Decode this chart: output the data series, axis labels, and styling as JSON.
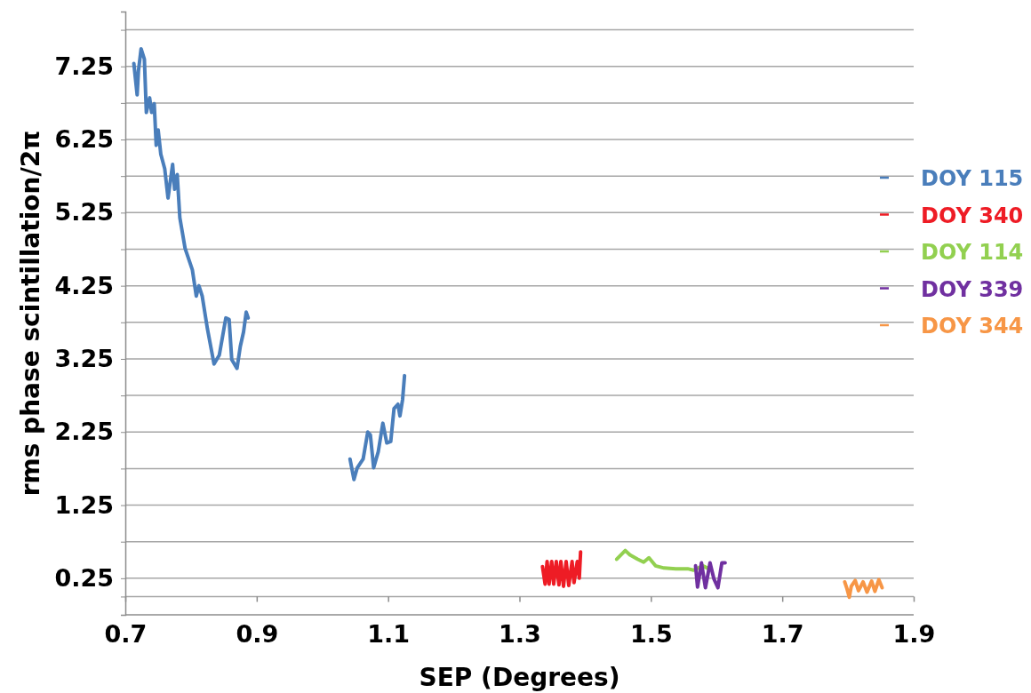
{
  "chart_data": {
    "type": "line",
    "xlabel": "SEP (Degrees)",
    "ylabel": "rms phase scintillation/2π",
    "xlim": [
      0.7,
      1.9
    ],
    "xticks": [
      0.7,
      0.9,
      1.1,
      1.3,
      1.5,
      1.7,
      1.9
    ],
    "ylim": [
      -0.25,
      8
    ],
    "yticks": [
      {
        "value": 0,
        "label": null
      },
      0.25,
      {
        "value": 0.75,
        "label": null
      },
      1.25,
      {
        "value": 1.75,
        "label": null
      },
      2.25,
      {
        "value": 2.75,
        "label": null
      },
      3.25,
      {
        "value": 3.75,
        "label": null
      },
      4.25,
      {
        "value": 4.75,
        "label": null
      },
      5.25,
      {
        "value": 5.75,
        "label": null
      },
      6.25,
      {
        "value": 6.75,
        "label": null
      },
      7.25,
      {
        "value": 7.75,
        "label": null
      }
    ],
    "grid": "y",
    "legend": "right",
    "marker": "none",
    "line_style": "solid",
    "series": [
      {
        "name": "DOY 115",
        "color": "#4a7ebb",
        "x": [
          0.713,
          0.718,
          0.72,
          0.724,
          0.729,
          0.732,
          0.737,
          0.74,
          0.744,
          0.747,
          0.75,
          0.754,
          0.76,
          0.765,
          0.772,
          0.775,
          0.779,
          0.783,
          0.791,
          0.802,
          0.808,
          0.812,
          0.817,
          0.825,
          0.835,
          0.843,
          0.853,
          0.858,
          0.862,
          0.87,
          0.875,
          0.88,
          0.884,
          0.887,
          0.96,
          1.042,
          1.048,
          1.053,
          1.062,
          1.069,
          1.073,
          1.078,
          1.085,
          1.092,
          1.098,
          1.104,
          1.109,
          1.115,
          1.118,
          1.122,
          1.125
        ],
        "values": [
          7.29,
          6.86,
          7.19,
          7.49,
          7.35,
          6.62,
          6.82,
          6.62,
          6.74,
          6.17,
          6.38,
          6.05,
          5.85,
          5.45,
          5.91,
          5.57,
          5.77,
          5.18,
          4.76,
          4.47,
          4.11,
          4.25,
          4.11,
          3.66,
          3.18,
          3.3,
          3.81,
          3.79,
          3.24,
          3.12,
          3.42,
          3.62,
          3.89,
          3.81,
          null,
          1.88,
          1.6,
          1.76,
          1.88,
          2.25,
          2.21,
          1.76,
          1.98,
          2.37,
          2.1,
          2.12,
          2.57,
          2.63,
          2.47,
          2.69,
          3.02
        ]
      },
      {
        "name": "DOY 340",
        "color": "#ee1c25",
        "x": [
          1.335,
          1.339,
          1.342,
          1.345,
          1.349,
          1.352,
          1.356,
          1.36,
          1.363,
          1.367,
          1.371,
          1.375,
          1.38,
          1.383,
          1.388,
          1.391,
          1.393
        ],
        "values": [
          0.41,
          0.17,
          0.48,
          0.17,
          0.48,
          0.17,
          0.48,
          0.16,
          0.48,
          0.14,
          0.48,
          0.15,
          0.48,
          0.19,
          0.48,
          0.25,
          0.61
        ]
      },
      {
        "name": "DOY 114",
        "color": "#92d050",
        "x": [
          1.448,
          1.461,
          1.468,
          1.48,
          1.489,
          1.497,
          1.507,
          1.52,
          1.538,
          1.556,
          1.565,
          1.579,
          1.588
        ],
        "values": [
          0.51,
          0.63,
          0.57,
          0.51,
          0.47,
          0.53,
          0.42,
          0.39,
          0.38,
          0.38,
          0.36,
          0.42,
          0.38
        ]
      },
      {
        "name": "DOY 339",
        "color": "#7030a0",
        "x": [
          1.568,
          1.571,
          1.577,
          1.583,
          1.59,
          1.596,
          1.602,
          1.608,
          1.613
        ],
        "values": [
          0.42,
          0.13,
          0.46,
          0.12,
          0.46,
          0.24,
          0.12,
          0.46,
          0.46
        ]
      },
      {
        "name": "DOY 344",
        "color": "#f79646",
        "x": [
          1.795,
          1.798,
          1.802,
          1.805,
          1.811,
          1.816,
          1.823,
          1.829,
          1.836,
          1.841,
          1.847,
          1.852
        ],
        "values": [
          0.2,
          0.12,
          -0.01,
          0.14,
          0.22,
          0.08,
          0.2,
          0.06,
          0.21,
          0.07,
          0.23,
          0.12
        ]
      }
    ]
  }
}
